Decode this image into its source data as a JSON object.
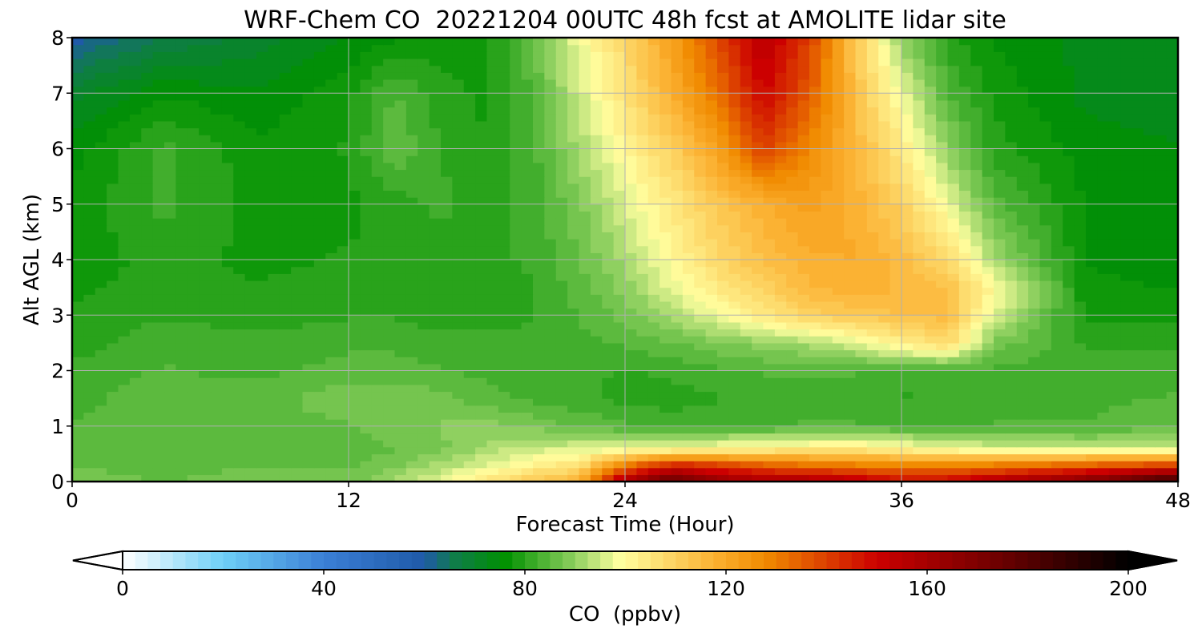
{
  "chart_data": {
    "type": "heatmap",
    "title": "WRF-Chem CO  20221204 00UTC 48h fcst at AMOLITE lidar site",
    "xlabel": "Forecast Time (Hour)",
    "ylabel": "Alt AGL (km)",
    "xlim": [
      0,
      48
    ],
    "ylim": [
      0,
      8
    ],
    "xticks": [
      0,
      12,
      24,
      36,
      48
    ],
    "yticks": [
      0,
      1,
      2,
      3,
      4,
      5,
      6,
      7,
      8
    ],
    "grid": true,
    "colorbar": {
      "label": "CO  (ppbv)",
      "range": [
        0,
        200
      ],
      "ticks": [
        0,
        40,
        80,
        120,
        160,
        200
      ],
      "extend": "both",
      "orientation": "horizontal",
      "stops": [
        {
          "value": 0,
          "color": "#ffffff"
        },
        {
          "value": 20,
          "color": "#6ecff6"
        },
        {
          "value": 40,
          "color": "#3b7fd6"
        },
        {
          "value": 60,
          "color": "#1f5aa8"
        },
        {
          "value": 66,
          "color": "#0f7c4a"
        },
        {
          "value": 76,
          "color": "#009100"
        },
        {
          "value": 90,
          "color": "#8fd060"
        },
        {
          "value": 99,
          "color": "#ffffa0"
        },
        {
          "value": 118,
          "color": "#fbb030"
        },
        {
          "value": 128,
          "color": "#f08a00"
        },
        {
          "value": 150,
          "color": "#cc0000"
        },
        {
          "value": 175,
          "color": "#6a0000"
        },
        {
          "value": 200,
          "color": "#000000"
        }
      ]
    },
    "hours": [
      0,
      4,
      8,
      12,
      14,
      16,
      18,
      20,
      22,
      24,
      26,
      28,
      30,
      32,
      34,
      36,
      38,
      40,
      44,
      48
    ],
    "altitudes_km": [
      0,
      0.3,
      0.6,
      1,
      1.5,
      2,
      2.5,
      3,
      3.5,
      4,
      5,
      6,
      7,
      8
    ],
    "values_ppbv": [
      [
        88,
        86,
        88,
        87,
        92,
        98,
        105,
        112,
        118,
        160,
        180,
        165,
        160,
        160,
        155,
        150,
        150,
        158,
        170,
        190
      ],
      [
        86,
        85,
        86,
        86,
        88,
        92,
        97,
        102,
        106,
        130,
        145,
        140,
        135,
        132,
        130,
        128,
        128,
        130,
        135,
        140
      ],
      [
        85,
        84,
        84,
        85,
        86,
        88,
        92,
        95,
        96,
        97,
        98,
        100,
        102,
        103,
        104,
        101,
        98,
        96,
        94,
        93
      ],
      [
        84,
        85,
        85,
        86,
        88,
        89,
        90,
        88,
        86,
        84,
        83,
        83,
        83,
        84,
        84,
        83,
        83,
        84,
        84,
        86
      ],
      [
        83,
        85,
        85,
        88,
        88,
        87,
        85,
        83,
        82,
        80,
        80,
        81,
        82,
        83,
        83,
        81,
        82,
        82,
        83,
        84
      ],
      [
        82,
        84,
        83,
        85,
        85,
        84,
        83,
        82,
        82,
        81,
        82,
        83,
        84,
        84,
        84,
        82,
        82,
        83,
        82,
        83
      ],
      [
        80,
        83,
        82,
        83,
        83,
        82,
        82,
        82,
        83,
        84,
        86,
        88,
        90,
        92,
        96,
        103,
        108,
        88,
        81,
        81
      ],
      [
        79,
        81,
        80,
        81,
        81,
        80,
        80,
        81,
        84,
        87,
        92,
        98,
        104,
        110,
        112,
        114,
        115,
        96,
        78,
        78
      ],
      [
        78,
        80,
        79,
        80,
        79,
        79,
        79,
        81,
        85,
        90,
        97,
        104,
        110,
        116,
        118,
        116,
        114,
        100,
        77,
        76
      ],
      [
        77,
        80,
        78,
        79,
        79,
        80,
        80,
        82,
        86,
        92,
        100,
        108,
        114,
        118,
        119,
        115,
        108,
        92,
        76,
        75
      ],
      [
        77,
        82,
        78,
        78,
        80,
        82,
        80,
        82,
        88,
        96,
        104,
        112,
        118,
        122,
        118,
        110,
        98,
        85,
        76,
        75
      ],
      [
        75,
        82,
        77,
        79,
        86,
        81,
        79,
        83,
        92,
        101,
        110,
        122,
        140,
        128,
        116,
        104,
        90,
        80,
        75,
        74
      ],
      [
        70,
        76,
        74,
        78,
        84,
        80,
        78,
        84,
        95,
        106,
        118,
        132,
        150,
        136,
        114,
        98,
        84,
        78,
        73,
        72
      ],
      [
        60,
        66,
        70,
        74,
        76,
        77,
        78,
        86,
        98,
        108,
        122,
        138,
        155,
        140,
        112,
        90,
        80,
        76,
        73,
        73
      ]
    ]
  }
}
